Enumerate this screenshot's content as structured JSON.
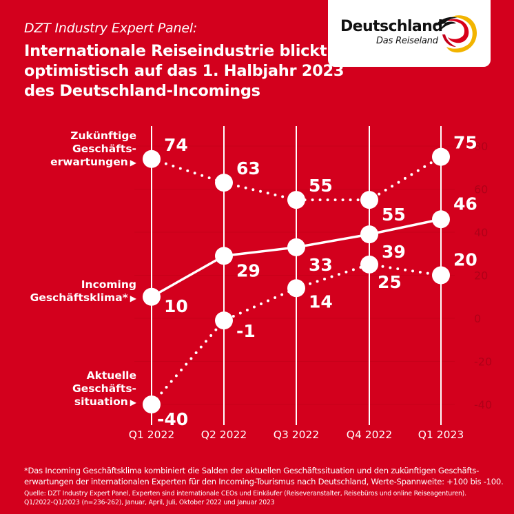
{
  "header": {
    "kicker": "DZT Industry Expert Panel:",
    "title_lines": [
      "Internationale Reiseindustrie blickt",
      "optimistisch auf das 1. Halbjahr 2023",
      "des Deutschland-Incomings"
    ]
  },
  "logo": {
    "wordmark": "Deutschland",
    "tagline": "Das Reiseland",
    "icon": "germany-swirl-logo-icon",
    "colors": [
      "#000000",
      "#dd0000",
      "#ffcc00"
    ]
  },
  "series_labels": [
    {
      "lines": [
        "Zukünftige",
        "Geschäfts-",
        "erwartungen"
      ],
      "arrow": "▶"
    },
    {
      "lines": [
        "Incoming",
        "Geschäftsklima*"
      ],
      "arrow": "▶"
    },
    {
      "lines": [
        "Aktuelle",
        "Geschäfts-",
        "situation"
      ],
      "arrow": "▶"
    }
  ],
  "chart_data": {
    "type": "line",
    "title": "Internationale Reiseindustrie blickt optimistisch auf das 1. Halbjahr 2023 des Deutschland-Incomings",
    "categories": [
      "Q1 2022",
      "Q2 2022",
      "Q3 2022",
      "Q4 2022",
      "Q1 2023"
    ],
    "series": [
      {
        "name": "Zukünftige Geschäftserwartungen",
        "style": "dotted",
        "values": [
          74,
          63,
          55,
          55,
          75
        ]
      },
      {
        "name": "Incoming Geschäftsklima*",
        "style": "solid",
        "values": [
          10,
          29,
          33,
          39,
          46
        ]
      },
      {
        "name": "Aktuelle Geschäftssituation",
        "style": "dotted",
        "values": [
          -40,
          -1,
          14,
          25,
          20
        ]
      }
    ],
    "yaxis": {
      "position": "right",
      "ticks": [
        80,
        60,
        40,
        20,
        0,
        -20,
        -40
      ],
      "ylim": [
        -40,
        80
      ]
    },
    "xlabel": "",
    "ylabel": "",
    "grid": true,
    "legend": "left (inline labels)",
    "colors": {
      "background": "#d3001d",
      "marks": "#ffffff",
      "axis_ticks": "#b00018"
    }
  },
  "footnote": {
    "definition_lines": [
      "*Das Incoming Geschäftsklima kombiniert die Salden der aktuellen Geschäftssituation und den zukünftigen Geschäfts-",
      "erwartungen der internationalen Experten für den Incoming-Tourismus nach Deutschland, Werte-Spannweite: +100 bis -100."
    ],
    "source_lines": [
      "Quelle: DZT Industry Expert Panel, Experten sind internationale CEOs und Einkäufer (Reiseveranstalter, Reisebüros und online Reiseagenturen).",
      "Q1/2022-Q1/2023 (n=236-262), Januar, April, Juli, Oktober 2022 und Januar 2023"
    ]
  }
}
